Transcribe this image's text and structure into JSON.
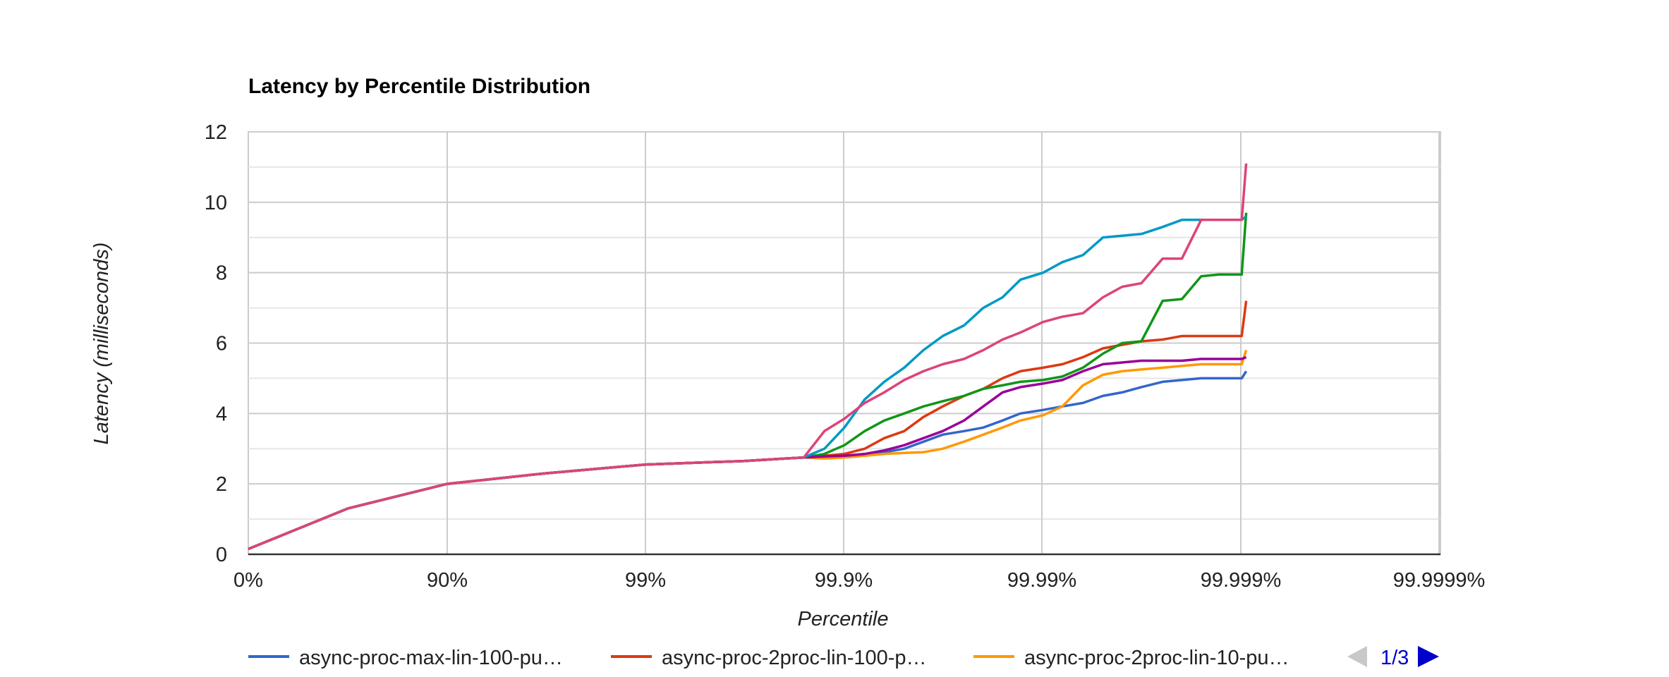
{
  "chart_data": {
    "type": "line",
    "title": "Latency by Percentile Distribution",
    "xlabel": "Percentile",
    "ylabel": "Latency (milliseconds)",
    "x_scale": "log-nines",
    "x_ticks": [
      "0%",
      "90%",
      "99%",
      "99.9%",
      "99.99%",
      "99.999%",
      "99.9999%"
    ],
    "y_ticks": [
      "0",
      "2",
      "4",
      "6",
      "8",
      "10",
      "12"
    ],
    "ylim": [
      0,
      12
    ],
    "grid": true,
    "legend_position": "bottom",
    "pager": {
      "label": "1/3",
      "prev_icon": "triangle-left-icon",
      "next_icon": "triangle-right-icon"
    },
    "legend": [
      {
        "label": "async-proc-max-lin-100-pu…",
        "color": "#3366cc"
      },
      {
        "label": "async-proc-2proc-lin-100-p…",
        "color": "#dc3912"
      },
      {
        "label": "async-proc-2proc-lin-10-pu…",
        "color": "#ff9900"
      }
    ],
    "common_curve": {
      "x": [
        "0%",
        "68.4%",
        "90%",
        "96.8%",
        "99%",
        "99.68%",
        "99.8%",
        "99.84%"
      ],
      "y": [
        0.15,
        1.3,
        2.0,
        2.3,
        2.55,
        2.65,
        2.72,
        2.75
      ]
    },
    "series": [
      {
        "color": "#3366cc",
        "x": [
          "99.84%",
          "99.874%",
          "99.9%",
          "99.921%",
          "99.937%",
          "99.95%",
          "99.96%",
          "99.968%",
          "99.975%",
          "99.98%",
          "99.984%",
          "99.987%",
          "99.99%",
          "99.992%",
          "99.9937%",
          "99.995%",
          "99.996%",
          "99.9968%",
          "99.9975%",
          "99.998%",
          "99.9984%",
          "99.9987%",
          "99.999%",
          "99.99905%"
        ],
        "y": [
          2.75,
          2.75,
          2.8,
          2.85,
          2.9,
          3.0,
          3.2,
          3.4,
          3.5,
          3.6,
          3.8,
          4.0,
          4.1,
          4.2,
          4.3,
          4.5,
          4.6,
          4.75,
          4.9,
          4.95,
          5.0,
          5.0,
          5.0,
          5.2
        ]
      },
      {
        "color": "#dc3912",
        "x": [
          "99.84%",
          "99.874%",
          "99.9%",
          "99.921%",
          "99.937%",
          "99.95%",
          "99.96%",
          "99.968%",
          "99.975%",
          "99.98%",
          "99.984%",
          "99.987%",
          "99.99%",
          "99.992%",
          "99.9937%",
          "99.995%",
          "99.996%",
          "99.9968%",
          "99.9975%",
          "99.998%",
          "99.9984%",
          "99.9987%",
          "99.999%",
          "99.99905%"
        ],
        "y": [
          2.75,
          2.8,
          2.85,
          3.0,
          3.3,
          3.5,
          3.9,
          4.2,
          4.5,
          4.7,
          5.0,
          5.2,
          5.3,
          5.4,
          5.6,
          5.85,
          5.95,
          6.05,
          6.1,
          6.2,
          6.2,
          6.2,
          6.2,
          7.2
        ]
      },
      {
        "color": "#ff9900",
        "x": [
          "99.84%",
          "99.874%",
          "99.9%",
          "99.921%",
          "99.937%",
          "99.95%",
          "99.96%",
          "99.968%",
          "99.975%",
          "99.98%",
          "99.984%",
          "99.987%",
          "99.99%",
          "99.992%",
          "99.9937%",
          "99.995%",
          "99.996%",
          "99.9968%",
          "99.9975%",
          "99.998%",
          "99.9984%",
          "99.9987%",
          "99.999%",
          "99.99905%"
        ],
        "y": [
          2.72,
          2.72,
          2.75,
          2.8,
          2.85,
          2.88,
          2.9,
          3.0,
          3.2,
          3.4,
          3.6,
          3.8,
          3.95,
          4.2,
          4.8,
          5.1,
          5.2,
          5.25,
          5.3,
          5.35,
          5.4,
          5.4,
          5.4,
          5.8
        ]
      },
      {
        "color": "#109618",
        "x": [
          "99.84%",
          "99.874%",
          "99.9%",
          "99.921%",
          "99.937%",
          "99.95%",
          "99.96%",
          "99.968%",
          "99.975%",
          "99.98%",
          "99.984%",
          "99.987%",
          "99.99%",
          "99.992%",
          "99.9937%",
          "99.995%",
          "99.996%",
          "99.9968%",
          "99.9975%",
          "99.998%",
          "99.9984%",
          "99.9987%",
          "99.999%",
          "99.99905%"
        ],
        "y": [
          2.75,
          2.85,
          3.1,
          3.5,
          3.8,
          4.0,
          4.2,
          4.35,
          4.5,
          4.7,
          4.8,
          4.9,
          4.95,
          5.05,
          5.3,
          5.7,
          6.0,
          6.05,
          7.2,
          7.25,
          7.9,
          7.95,
          7.95,
          9.7
        ]
      },
      {
        "color": "#990099",
        "x": [
          "99.84%",
          "99.874%",
          "99.9%",
          "99.921%",
          "99.937%",
          "99.95%",
          "99.96%",
          "99.968%",
          "99.975%",
          "99.98%",
          "99.984%",
          "99.987%",
          "99.99%",
          "99.992%",
          "99.9937%",
          "99.995%",
          "99.996%",
          "99.9968%",
          "99.9975%",
          "99.998%",
          "99.9984%",
          "99.9987%",
          "99.999%",
          "99.99905%"
        ],
        "y": [
          2.75,
          2.78,
          2.8,
          2.85,
          2.95,
          3.1,
          3.3,
          3.5,
          3.8,
          4.2,
          4.6,
          4.75,
          4.85,
          4.95,
          5.2,
          5.4,
          5.45,
          5.5,
          5.5,
          5.5,
          5.55,
          5.55,
          5.55,
          5.6
        ]
      },
      {
        "color": "#0099c6",
        "x": [
          "99.84%",
          "99.874%",
          "99.9%",
          "99.921%",
          "99.937%",
          "99.95%",
          "99.96%",
          "99.968%",
          "99.975%",
          "99.98%",
          "99.984%",
          "99.987%",
          "99.99%",
          "99.992%",
          "99.9937%",
          "99.995%",
          "99.996%",
          "99.9968%",
          "99.9975%",
          "99.998%",
          "99.9984%",
          "99.9987%",
          "99.999%",
          "99.99905%"
        ],
        "y": [
          2.75,
          3.0,
          3.6,
          4.4,
          4.9,
          5.3,
          5.8,
          6.2,
          6.5,
          7.0,
          7.3,
          7.8,
          8.0,
          8.3,
          8.5,
          9.0,
          9.05,
          9.1,
          9.3,
          9.5,
          9.5,
          9.5,
          9.5,
          9.6
        ]
      },
      {
        "color": "#dd4477",
        "x": [
          "99.78%",
          "99.84%",
          "99.874%",
          "99.9%",
          "99.921%",
          "99.937%",
          "99.95%",
          "99.96%",
          "99.968%",
          "99.975%",
          "99.98%",
          "99.984%",
          "99.987%",
          "99.99%",
          "99.992%",
          "99.9937%",
          "99.995%",
          "99.996%",
          "99.9968%",
          "99.9975%",
          "99.998%",
          "99.9984%",
          "99.9987%",
          "99.999%",
          "99.99905%"
        ],
        "y": [
          2.75,
          3.1,
          3.5,
          3.85,
          4.3,
          4.6,
          4.95,
          5.2,
          5.4,
          5.55,
          5.8,
          6.1,
          6.3,
          6.6,
          6.75,
          6.85,
          7.3,
          7.6,
          7.7,
          8.4,
          8.4,
          9.5,
          9.5,
          9.5,
          11.1
        ]
      }
    ]
  }
}
